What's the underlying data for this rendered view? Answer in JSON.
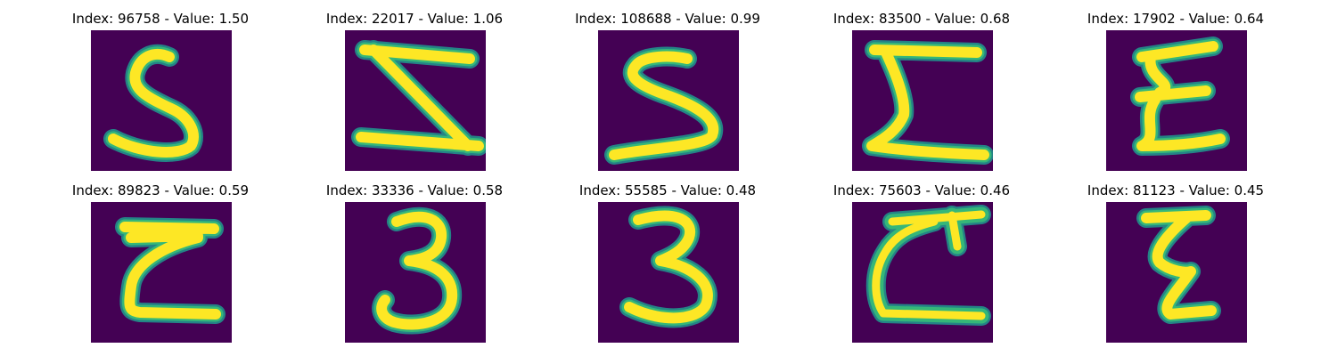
{
  "colors": {
    "background": "#440154",
    "stroke_core": "#fde725",
    "stroke_edge": "#35b779",
    "stroke_halo": "#21918c"
  },
  "panels": [
    {
      "title": "Index: 96758 - Value: 1.50",
      "glyph": "five-shape"
    },
    {
      "title": "Index: 22017 - Value: 1.06",
      "glyph": "z-shape"
    },
    {
      "title": "Index: 108688 - Value: 0.99",
      "glyph": "s-shape"
    },
    {
      "title": "Index: 83500 - Value: 0.68",
      "glyph": "sigma-shape"
    },
    {
      "title": "Index: 17902 - Value: 0.64",
      "glyph": "xi-shape"
    },
    {
      "title": "Index: 89823 - Value: 0.59",
      "glyph": "z-bar-shape"
    },
    {
      "title": "Index: 33336 - Value: 0.58",
      "glyph": "three-shape"
    },
    {
      "title": "Index: 55585 - Value: 0.48",
      "glyph": "three-shape-bold"
    },
    {
      "title": "Index: 75603 - Value: 0.46",
      "glyph": "c-cross-shape"
    },
    {
      "title": "Index: 81123 - Value: 0.45",
      "glyph": "zeta-shape"
    }
  ]
}
